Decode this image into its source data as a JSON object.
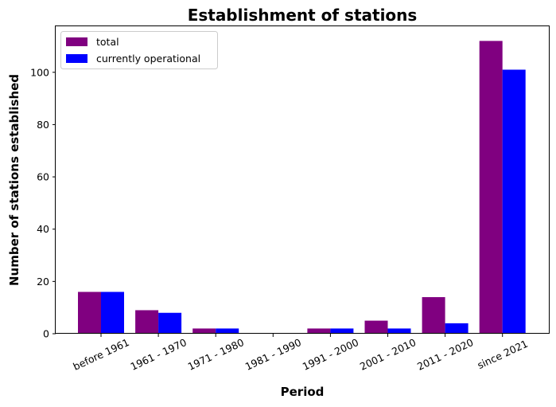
{
  "chart_data": {
    "type": "bar",
    "title": "Establishment of stations",
    "xlabel": "Period",
    "ylabel": "Number of stations established",
    "categories": [
      "before 1961",
      "1961 - 1970",
      "1971 - 1980",
      "1981 - 1990",
      "1991 - 2000",
      "2001 - 2010",
      "2011 - 2020",
      "since 2021"
    ],
    "series": [
      {
        "name": "total",
        "color": "#800080",
        "values": [
          16,
          9,
          2,
          0,
          2,
          5,
          14,
          112
        ]
      },
      {
        "name": "currently operational",
        "color": "#0000ff",
        "values": [
          16,
          8,
          2,
          0,
          2,
          2,
          4,
          101
        ]
      }
    ],
    "yticks": [
      0,
      20,
      40,
      60,
      80,
      100
    ],
    "ylim": [
      0,
      117.6
    ],
    "grid": false,
    "legend_position": "top-left"
  }
}
